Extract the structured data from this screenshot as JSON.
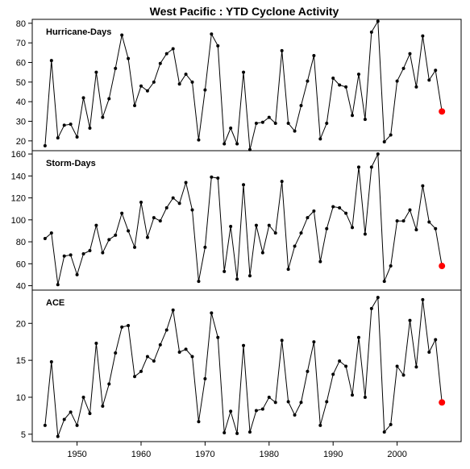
{
  "title": "West Pacific : YTD Cyclone Activity",
  "colors": {
    "line": "#000000",
    "point": "#000000",
    "highlight": "#ff0000"
  },
  "chart_data": [
    {
      "type": "line",
      "label": "Hurricane-Days",
      "xlim": [
        1943,
        2010
      ],
      "ylim": [
        15,
        82
      ],
      "yticks": [
        20,
        30,
        40,
        50,
        60,
        70,
        80
      ],
      "x": [
        1945,
        1946,
        1947,
        1948,
        1949,
        1950,
        1951,
        1952,
        1953,
        1954,
        1955,
        1956,
        1957,
        1958,
        1959,
        1960,
        1961,
        1962,
        1963,
        1964,
        1965,
        1966,
        1967,
        1968,
        1969,
        1970,
        1971,
        1972,
        1973,
        1974,
        1975,
        1976,
        1977,
        1978,
        1979,
        1980,
        1981,
        1982,
        1983,
        1984,
        1985,
        1986,
        1987,
        1988,
        1989,
        1990,
        1991,
        1992,
        1993,
        1994,
        1995,
        1996,
        1997,
        1998,
        1999,
        2000,
        2001,
        2002,
        2003,
        2004,
        2005,
        2006,
        2007
      ],
      "values": [
        17.5,
        61,
        21.5,
        28,
        28.5,
        22,
        42,
        26.5,
        55,
        32,
        41.5,
        57,
        74,
        62,
        38,
        48,
        45.5,
        50,
        59.5,
        64.5,
        67,
        49,
        54,
        50,
        20.5,
        46,
        74.5,
        68.5,
        18.5,
        26.5,
        18.5,
        55,
        15.5,
        29,
        29.5,
        32,
        29,
        66,
        29,
        25,
        38,
        50.5,
        63.5,
        21,
        29,
        52,
        48.5,
        47.5,
        33,
        54,
        31,
        75.5,
        81,
        19.5,
        23,
        50.5,
        57,
        64.5,
        47.5,
        73.5,
        51,
        56,
        35
      ],
      "highlight_last": true
    },
    {
      "type": "line",
      "label": "Storm-Days",
      "xlim": [
        1943,
        2010
      ],
      "ylim": [
        36,
        163
      ],
      "yticks": [
        40,
        60,
        80,
        100,
        120,
        140,
        160
      ],
      "x": [
        1945,
        1946,
        1947,
        1948,
        1949,
        1950,
        1951,
        1952,
        1953,
        1954,
        1955,
        1956,
        1957,
        1958,
        1959,
        1960,
        1961,
        1962,
        1963,
        1964,
        1965,
        1966,
        1967,
        1968,
        1969,
        1970,
        1971,
        1972,
        1973,
        1974,
        1975,
        1976,
        1977,
        1978,
        1979,
        1980,
        1981,
        1982,
        1983,
        1984,
        1985,
        1986,
        1987,
        1988,
        1989,
        1990,
        1991,
        1992,
        1993,
        1994,
        1995,
        1996,
        1997,
        1998,
        1999,
        2000,
        2001,
        2002,
        2003,
        2004,
        2005,
        2006,
        2007
      ],
      "values": [
        83,
        88,
        41,
        67,
        68,
        50,
        69,
        72,
        95,
        70,
        82,
        86,
        106,
        90,
        75,
        116,
        84,
        102,
        99,
        111,
        120,
        115,
        134,
        109,
        44,
        75,
        139,
        138,
        53,
        94,
        46,
        132,
        49,
        95,
        70,
        95,
        88,
        135,
        55,
        76,
        88,
        102,
        108,
        62,
        92,
        112,
        111,
        106,
        93,
        148,
        87,
        148,
        160,
        44,
        58,
        99,
        99,
        109,
        91,
        131,
        98,
        92,
        58
      ],
      "highlight_last": true
    },
    {
      "type": "line",
      "label": "ACE",
      "xlim": [
        1943,
        2010
      ],
      "ylim": [
        4,
        24.5
      ],
      "yticks": [
        5,
        10,
        15,
        20
      ],
      "x": [
        1945,
        1946,
        1947,
        1948,
        1949,
        1950,
        1951,
        1952,
        1953,
        1954,
        1955,
        1956,
        1957,
        1958,
        1959,
        1960,
        1961,
        1962,
        1963,
        1964,
        1965,
        1966,
        1967,
        1968,
        1969,
        1970,
        1971,
        1972,
        1973,
        1974,
        1975,
        1976,
        1977,
        1978,
        1979,
        1980,
        1981,
        1982,
        1983,
        1984,
        1985,
        1986,
        1987,
        1988,
        1989,
        1990,
        1991,
        1992,
        1993,
        1994,
        1995,
        1996,
        1997,
        1998,
        1999,
        2000,
        2001,
        2002,
        2003,
        2004,
        2005,
        2006,
        2007
      ],
      "values": [
        6.2,
        14.8,
        4.7,
        7,
        8,
        6.2,
        10,
        7.8,
        17.3,
        8.8,
        11.8,
        16,
        19.5,
        19.7,
        12.8,
        13.5,
        15.5,
        14.9,
        17.1,
        19.1,
        21.8,
        16.1,
        16.5,
        15.5,
        6.7,
        12.5,
        21.4,
        18.1,
        5.2,
        8.1,
        5.1,
        17,
        5.3,
        8.2,
        8.4,
        10,
        9.3,
        17.7,
        9.4,
        7.6,
        9.3,
        13.5,
        17.5,
        6.2,
        9.4,
        13.1,
        14.9,
        14.2,
        10.3,
        18.1,
        10,
        22,
        23.5,
        5.3,
        6.3,
        14.2,
        13,
        20.4,
        14.1,
        23.2,
        16.1,
        17.8,
        9.3
      ],
      "highlight_last": true
    }
  ],
  "xaxis": {
    "ticks": [
      1950,
      1960,
      1970,
      1980,
      1990,
      2000
    ]
  }
}
